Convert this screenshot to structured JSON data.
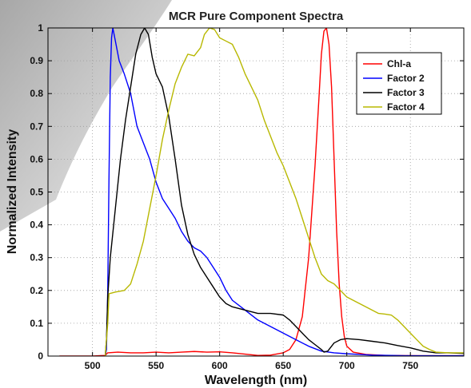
{
  "chart_data": {
    "type": "line",
    "title": "MCR Pure Component Spectra",
    "xlabel": "Wavelength (nm)",
    "ylabel": "Normalized Intensity",
    "xlim": [
      465,
      792
    ],
    "ylim": [
      0,
      1
    ],
    "xticks": [
      500,
      550,
      600,
      650,
      700,
      750
    ],
    "yticks": [
      0,
      0.1,
      0.2,
      0.3,
      0.4,
      0.5,
      0.6,
      0.7,
      0.8,
      0.9,
      1
    ],
    "ytick_labels": [
      "0",
      "0.1",
      "0.2",
      "0.3",
      "0.4",
      "0.5",
      "0.6",
      "0.7",
      "0.8",
      "0.9",
      "1"
    ],
    "grid": true,
    "legend_position": "top-right",
    "series": [
      {
        "name": "Chl-a",
        "color": "#ff0000",
        "points": [
          [
            474,
            0
          ],
          [
            500,
            0
          ],
          [
            510,
            0.002
          ],
          [
            512,
            0.01
          ],
          [
            520,
            0.012
          ],
          [
            530,
            0.01
          ],
          [
            540,
            0.01
          ],
          [
            550,
            0.012
          ],
          [
            560,
            0.01
          ],
          [
            570,
            0.012
          ],
          [
            580,
            0.014
          ],
          [
            590,
            0.012
          ],
          [
            600,
            0.013
          ],
          [
            610,
            0.01
          ],
          [
            620,
            0.006
          ],
          [
            630,
            0.002
          ],
          [
            640,
            0.003
          ],
          [
            650,
            0.01
          ],
          [
            655,
            0.02
          ],
          [
            660,
            0.05
          ],
          [
            665,
            0.12
          ],
          [
            670,
            0.3
          ],
          [
            675,
            0.58
          ],
          [
            678,
            0.78
          ],
          [
            680,
            0.92
          ],
          [
            682,
            0.99
          ],
          [
            684,
            1.0
          ],
          [
            686,
            0.95
          ],
          [
            688,
            0.82
          ],
          [
            690,
            0.6
          ],
          [
            692,
            0.38
          ],
          [
            694,
            0.22
          ],
          [
            696,
            0.12
          ],
          [
            698,
            0.06
          ],
          [
            700,
            0.03
          ],
          [
            705,
            0.012
          ],
          [
            715,
            0.005
          ],
          [
            730,
            0.002
          ],
          [
            760,
            0.001
          ],
          [
            792,
            0.001
          ]
        ]
      },
      {
        "name": "Factor 2",
        "color": "#0000ff",
        "points": [
          [
            510,
            0
          ],
          [
            511,
            0.02
          ],
          [
            512,
            0.2
          ],
          [
            513,
            0.55
          ],
          [
            514,
            0.85
          ],
          [
            515,
            0.97
          ],
          [
            516,
            1.0
          ],
          [
            518,
            0.96
          ],
          [
            521,
            0.9
          ],
          [
            525,
            0.86
          ],
          [
            530,
            0.8
          ],
          [
            535,
            0.7
          ],
          [
            540,
            0.65
          ],
          [
            545,
            0.6
          ],
          [
            550,
            0.53
          ],
          [
            555,
            0.48
          ],
          [
            560,
            0.45
          ],
          [
            565,
            0.42
          ],
          [
            570,
            0.38
          ],
          [
            575,
            0.35
          ],
          [
            580,
            0.33
          ],
          [
            585,
            0.32
          ],
          [
            590,
            0.3
          ],
          [
            595,
            0.27
          ],
          [
            600,
            0.24
          ],
          [
            605,
            0.2
          ],
          [
            610,
            0.17
          ],
          [
            620,
            0.14
          ],
          [
            630,
            0.11
          ],
          [
            640,
            0.09
          ],
          [
            650,
            0.07
          ],
          [
            660,
            0.05
          ],
          [
            670,
            0.03
          ],
          [
            680,
            0.015
          ],
          [
            690,
            0.01
          ],
          [
            700,
            0.007
          ],
          [
            710,
            0.005
          ],
          [
            720,
            0.003
          ],
          [
            735,
            0.002
          ],
          [
            750,
            0.001
          ],
          [
            792,
            0.001
          ]
        ]
      },
      {
        "name": "Factor 3",
        "color": "#000000",
        "points": [
          [
            510,
            0
          ],
          [
            511,
            0.05
          ],
          [
            512,
            0.18
          ],
          [
            514,
            0.3
          ],
          [
            518,
            0.45
          ],
          [
            522,
            0.6
          ],
          [
            526,
            0.72
          ],
          [
            530,
            0.82
          ],
          [
            534,
            0.92
          ],
          [
            538,
            0.98
          ],
          [
            541,
            1.0
          ],
          [
            544,
            0.98
          ],
          [
            547,
            0.91
          ],
          [
            550,
            0.86
          ],
          [
            555,
            0.82
          ],
          [
            560,
            0.73
          ],
          [
            565,
            0.6
          ],
          [
            570,
            0.46
          ],
          [
            575,
            0.37
          ],
          [
            580,
            0.31
          ],
          [
            585,
            0.27
          ],
          [
            590,
            0.24
          ],
          [
            595,
            0.21
          ],
          [
            600,
            0.18
          ],
          [
            605,
            0.16
          ],
          [
            610,
            0.15
          ],
          [
            620,
            0.14
          ],
          [
            630,
            0.13
          ],
          [
            640,
            0.13
          ],
          [
            650,
            0.125
          ],
          [
            655,
            0.11
          ],
          [
            660,
            0.09
          ],
          [
            665,
            0.07
          ],
          [
            670,
            0.05
          ],
          [
            675,
            0.035
          ],
          [
            680,
            0.02
          ],
          [
            682,
            0.012
          ],
          [
            685,
            0.015
          ],
          [
            690,
            0.04
          ],
          [
            695,
            0.05
          ],
          [
            700,
            0.053
          ],
          [
            710,
            0.05
          ],
          [
            720,
            0.045
          ],
          [
            730,
            0.04
          ],
          [
            740,
            0.032
          ],
          [
            750,
            0.025
          ],
          [
            760,
            0.015
          ],
          [
            770,
            0.01
          ],
          [
            780,
            0.01
          ],
          [
            792,
            0.008
          ]
        ]
      },
      {
        "name": "Factor 4",
        "color": "#b8b800",
        "points": [
          [
            510,
            0
          ],
          [
            512,
            0.1
          ],
          [
            513,
            0.19
          ],
          [
            518,
            0.195
          ],
          [
            525,
            0.2
          ],
          [
            530,
            0.22
          ],
          [
            535,
            0.28
          ],
          [
            540,
            0.35
          ],
          [
            545,
            0.45
          ],
          [
            550,
            0.55
          ],
          [
            555,
            0.66
          ],
          [
            560,
            0.75
          ],
          [
            565,
            0.83
          ],
          [
            570,
            0.88
          ],
          [
            575,
            0.92
          ],
          [
            580,
            0.915
          ],
          [
            585,
            0.94
          ],
          [
            588,
            0.98
          ],
          [
            592,
            1.0
          ],
          [
            596,
            0.995
          ],
          [
            600,
            0.97
          ],
          [
            605,
            0.96
          ],
          [
            610,
            0.95
          ],
          [
            615,
            0.91
          ],
          [
            620,
            0.86
          ],
          [
            625,
            0.82
          ],
          [
            630,
            0.78
          ],
          [
            635,
            0.72
          ],
          [
            640,
            0.67
          ],
          [
            645,
            0.62
          ],
          [
            650,
            0.58
          ],
          [
            655,
            0.53
          ],
          [
            660,
            0.48
          ],
          [
            665,
            0.42
          ],
          [
            670,
            0.36
          ],
          [
            675,
            0.3
          ],
          [
            680,
            0.25
          ],
          [
            685,
            0.23
          ],
          [
            690,
            0.22
          ],
          [
            695,
            0.2
          ],
          [
            700,
            0.18
          ],
          [
            705,
            0.17
          ],
          [
            710,
            0.16
          ],
          [
            715,
            0.15
          ],
          [
            720,
            0.14
          ],
          [
            725,
            0.13
          ],
          [
            730,
            0.128
          ],
          [
            735,
            0.125
          ],
          [
            740,
            0.11
          ],
          [
            745,
            0.09
          ],
          [
            750,
            0.07
          ],
          [
            755,
            0.05
          ],
          [
            760,
            0.03
          ],
          [
            765,
            0.02
          ],
          [
            770,
            0.012
          ],
          [
            780,
            0.01
          ],
          [
            792,
            0.01
          ]
        ]
      }
    ]
  }
}
